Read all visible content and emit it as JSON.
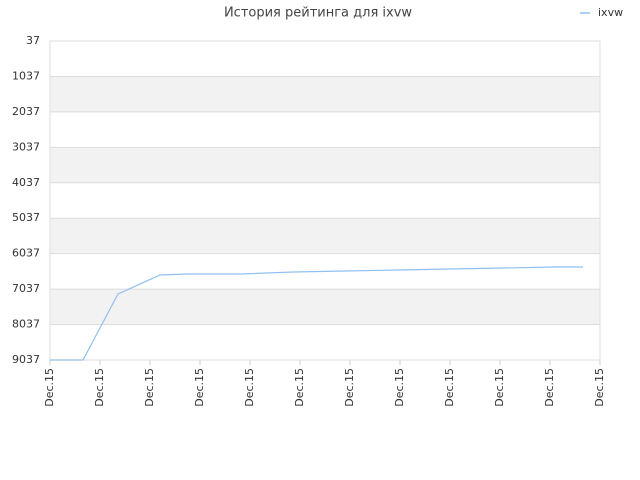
{
  "chart_data": {
    "type": "line",
    "title": "История рейтинга для ixvw",
    "x": [
      0,
      0.66,
      1.36,
      2.2,
      2.76,
      3.8,
      4.86,
      5.9,
      6.96,
      8.0,
      9.06,
      10.12,
      10.66
    ],
    "series": [
      {
        "name": "ixvw",
        "color": "#90c0f0",
        "values": [
          9037,
          9037,
          7175,
          6639,
          6611,
          6611,
          6555,
          6527,
          6498,
          6470,
          6442,
          6413,
          6413
        ]
      }
    ],
    "xlim": [
      0,
      11
    ],
    "xticks": [
      {
        "value": 0,
        "label": "Dec.15"
      },
      {
        "value": 1,
        "label": "Dec.15"
      },
      {
        "value": 2,
        "label": "Dec.15"
      },
      {
        "value": 3,
        "label": "Dec.15"
      },
      {
        "value": 4,
        "label": "Dec.15"
      },
      {
        "value": 5,
        "label": "Dec.15"
      },
      {
        "value": 6,
        "label": "Dec.15"
      },
      {
        "value": 7,
        "label": "Dec.15"
      },
      {
        "value": 8,
        "label": "Dec.15"
      },
      {
        "value": 9,
        "label": "Dec.15"
      },
      {
        "value": 10,
        "label": "Dec.15"
      },
      {
        "value": 11,
        "label": "Dec.15"
      }
    ],
    "ylim": [
      9037,
      37
    ],
    "yticks": [
      37,
      1037,
      2037,
      3037,
      4037,
      5037,
      6037,
      7037,
      8037,
      9037
    ],
    "grid": true,
    "bands": true,
    "legend": "top-right"
  }
}
